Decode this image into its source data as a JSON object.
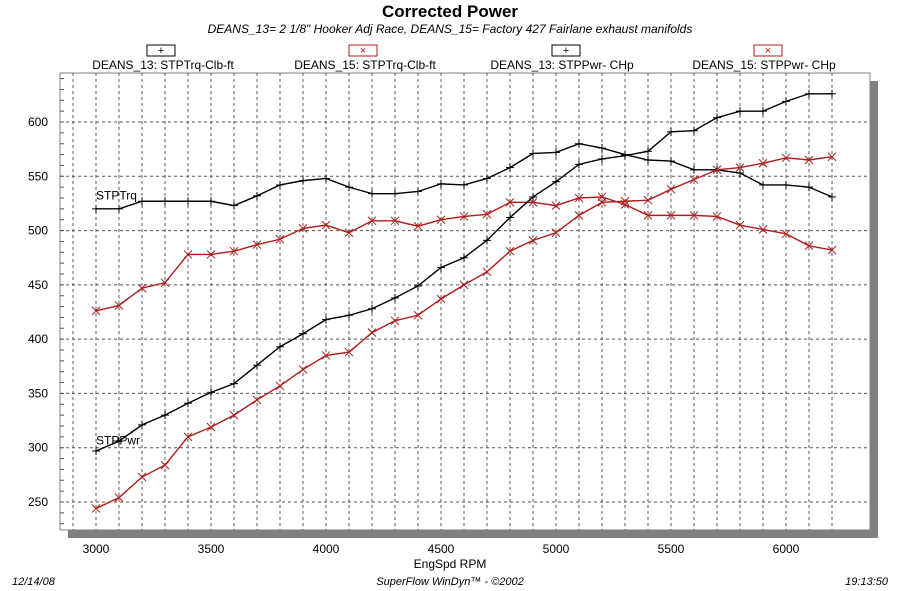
{
  "chart_data": {
    "type": "line",
    "title": "Corrected Power",
    "subtitle": "DEANS_13= 2 1/8\" Hooker Adj Race, DEANS_15= Factory 427 Fairlane exhaust manifolds",
    "xlabel": "EngSpd  RPM",
    "ylabel": "",
    "xlim": [
      2850,
      6300
    ],
    "ylim": [
      227,
      645
    ],
    "xticks": [
      3000,
      3500,
      4000,
      4500,
      5000,
      5500,
      6000
    ],
    "yticks": [
      250,
      300,
      350,
      400,
      450,
      500,
      550,
      600
    ],
    "grid": true,
    "legend_position": "top",
    "annotations": [
      {
        "text": "STPTrq",
        "x": 3000,
        "y": 527
      },
      {
        "text": "STPPwr",
        "x": 3000,
        "y": 301
      }
    ],
    "x": [
      3000,
      3100,
      3200,
      3300,
      3400,
      3500,
      3600,
      3700,
      3800,
      3900,
      4000,
      4100,
      4200,
      4300,
      4400,
      4500,
      4600,
      4700,
      4800,
      4900,
      5000,
      5100,
      5200,
      5300,
      5400,
      5500,
      5600,
      5700,
      5800,
      5900,
      6000,
      6100,
      6200
    ],
    "series": [
      {
        "name": "DEANS_13: STPTrq-Clb-ft",
        "marker": "+",
        "color": "#000000",
        "values": [
          520,
          520,
          527,
          527,
          527,
          527,
          523,
          532,
          542,
          546,
          548,
          540,
          534,
          534,
          536,
          543,
          542,
          548,
          558,
          571,
          572,
          580,
          576,
          570,
          565,
          564,
          556,
          556,
          553,
          542,
          542,
          540,
          531
        ]
      },
      {
        "name": "DEANS_15: STPTrq-Clb-ft",
        "marker": "x",
        "color": "#b01c1c",
        "values": [
          426,
          431,
          447,
          452,
          478,
          478,
          481,
          487,
          492,
          502,
          505,
          498,
          509,
          509,
          504,
          510,
          513,
          515,
          526,
          526,
          523,
          530,
          531,
          524,
          514,
          514,
          514,
          513,
          505,
          501,
          497,
          486,
          482
        ]
      },
      {
        "name": "DEANS_13: STPPwr- CHp",
        "marker": "+",
        "color": "#000000",
        "values": [
          297,
          306,
          321,
          330,
          341,
          351,
          359,
          376,
          393,
          405,
          418,
          422,
          428,
          438,
          449,
          466,
          475,
          491,
          512,
          531,
          545,
          561,
          566,
          569,
          573,
          591,
          592,
          604,
          610,
          610,
          619,
          626,
          626
        ]
      },
      {
        "name": "DEANS_15: STPPwr- CHp",
        "marker": "x",
        "color": "#b01c1c",
        "values": [
          244,
          254,
          273,
          284,
          310,
          319,
          330,
          344,
          357,
          372,
          385,
          388,
          406,
          417,
          422,
          437,
          450,
          462,
          481,
          491,
          498,
          514,
          526,
          527,
          528,
          538,
          547,
          556,
          558,
          562,
          567,
          565,
          568
        ]
      }
    ]
  },
  "footer": {
    "date": "12/14/08",
    "software": "SuperFlow WinDyn™ - ©2002",
    "time": "19:13:50"
  }
}
